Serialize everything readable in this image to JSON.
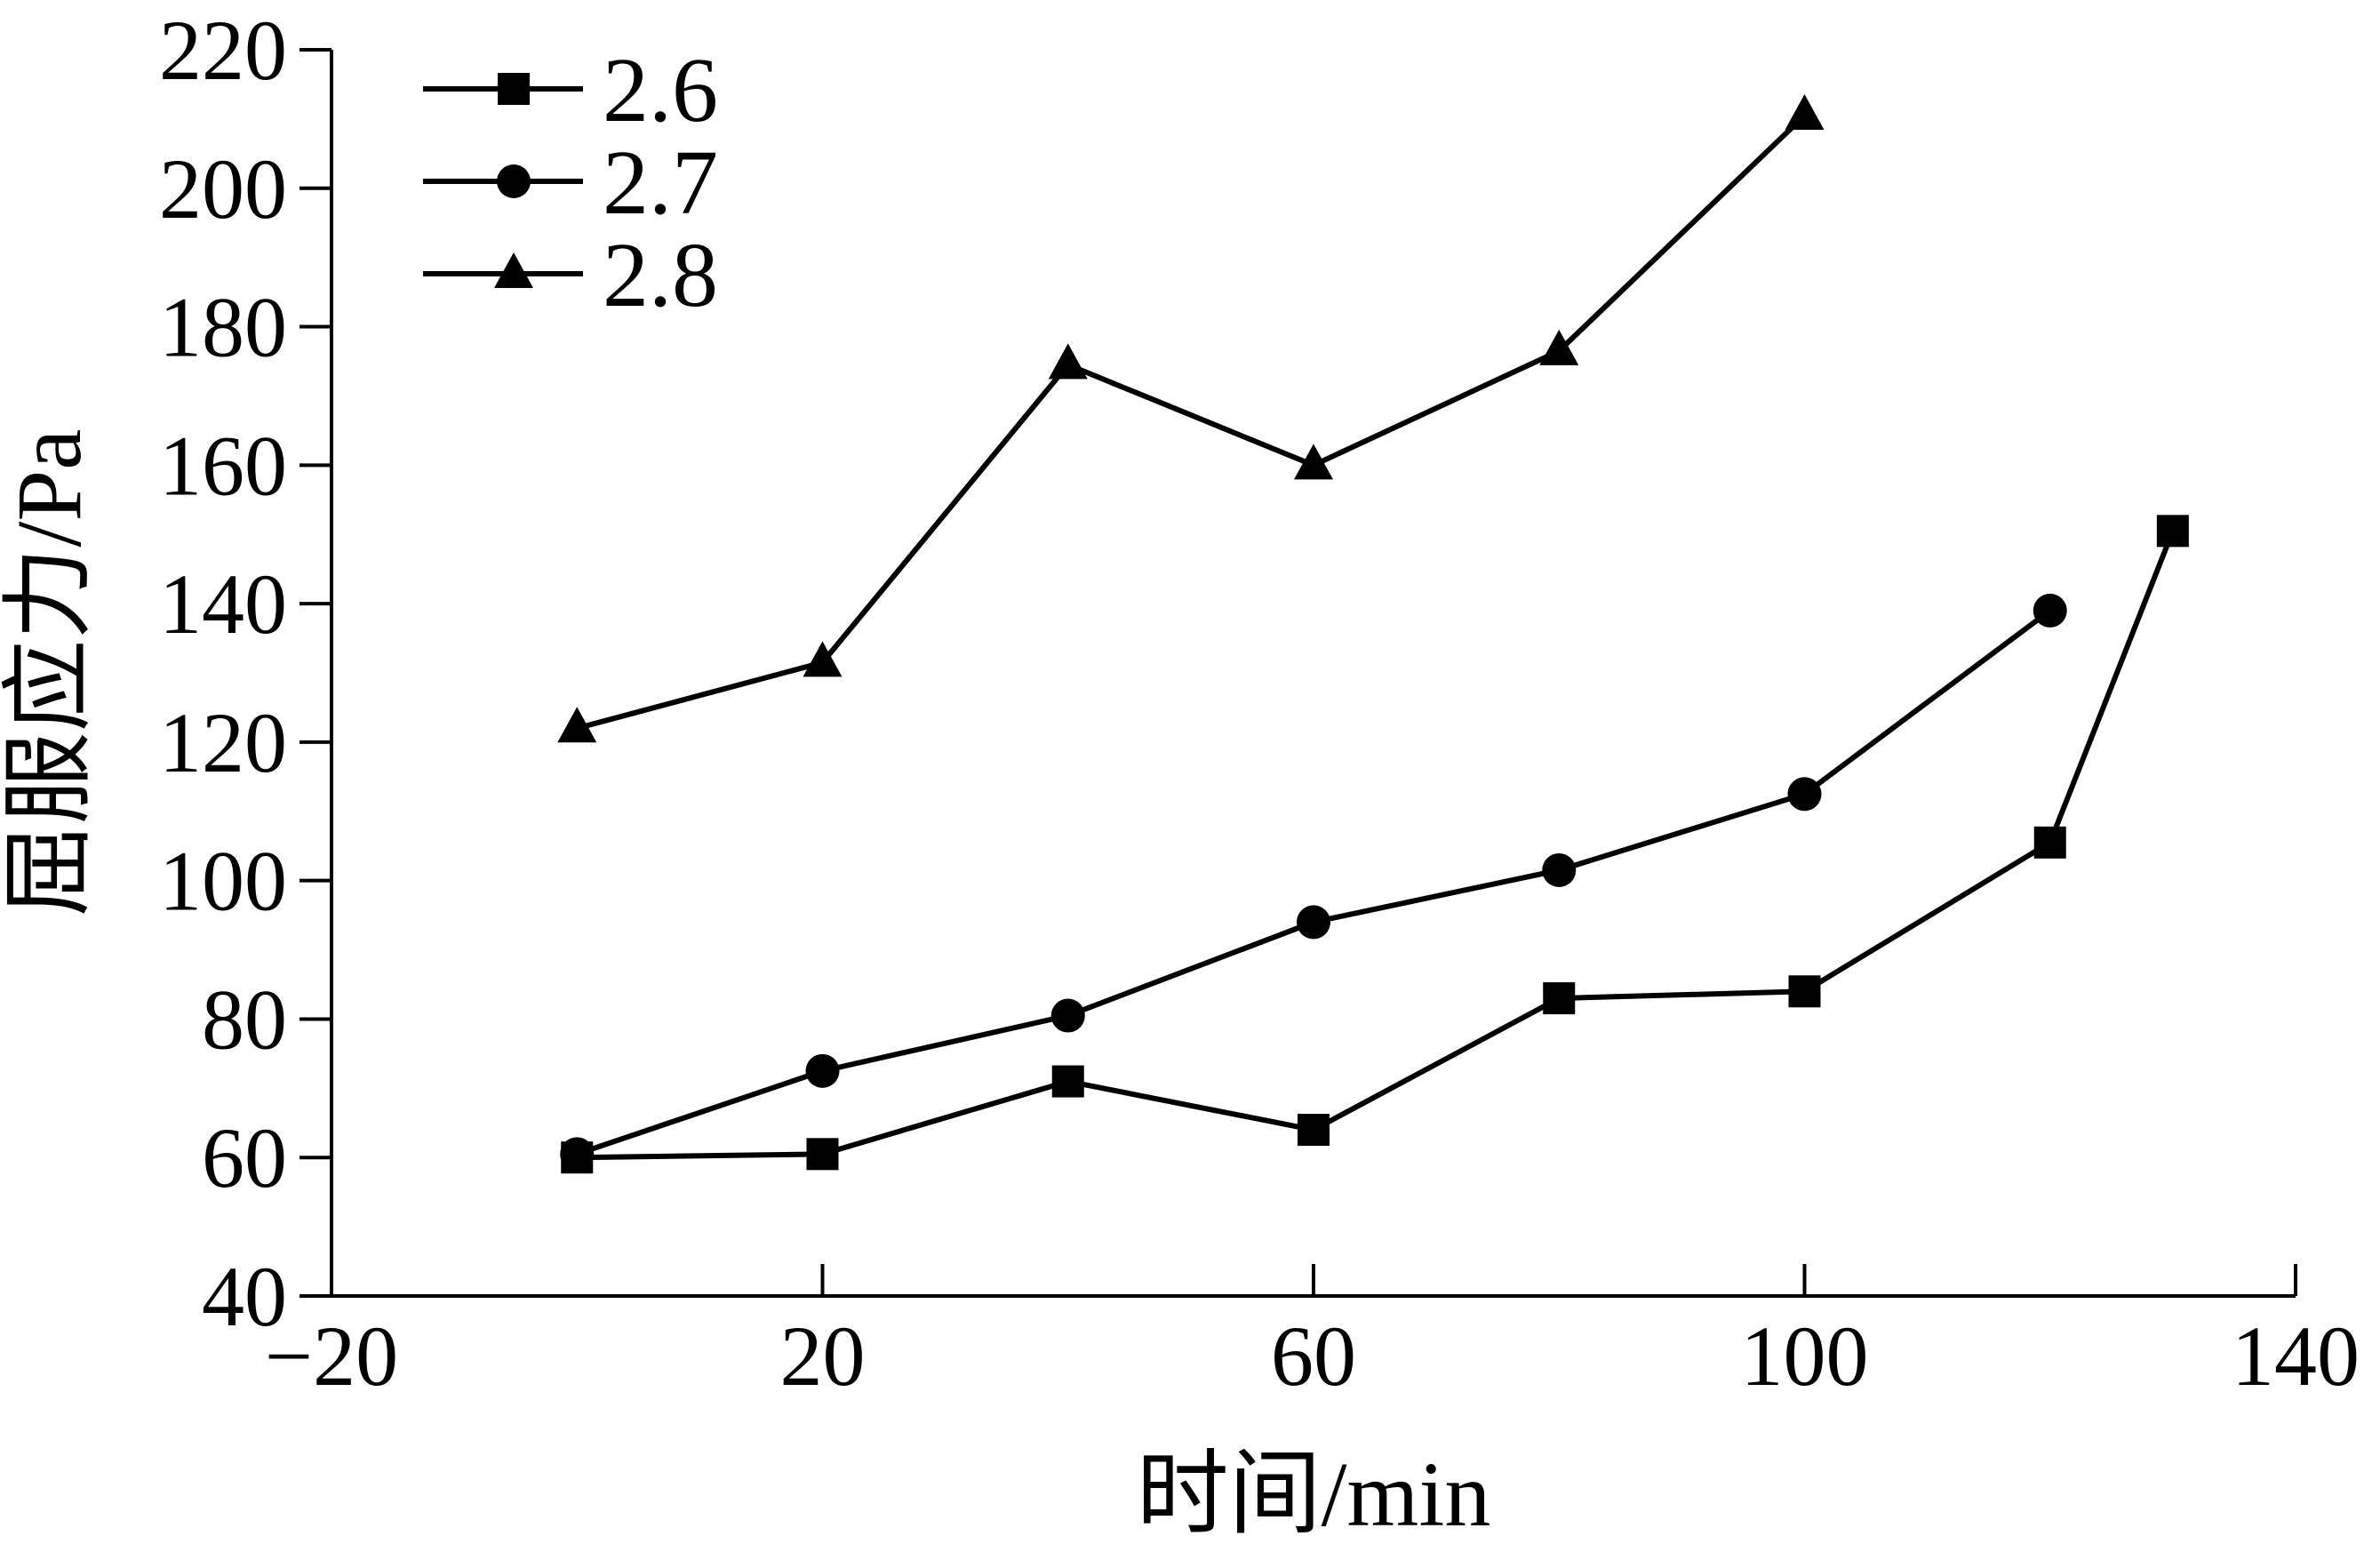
{
  "chart_data": {
    "type": "line",
    "title": "",
    "xlabel": "时间/min",
    "ylabel": "屈服应力/Pa",
    "xlim": [
      -20,
      140
    ],
    "ylim": [
      40,
      220
    ],
    "xticks": [
      -20,
      20,
      60,
      100,
      140
    ],
    "yticks": [
      40,
      60,
      80,
      100,
      120,
      140,
      160,
      180,
      200,
      220
    ],
    "xtick_labels": [
      "−20",
      "20",
      "60",
      "100",
      "140"
    ],
    "ytick_labels": [
      "40",
      "60",
      "80",
      "100",
      "120",
      "140",
      "160",
      "180",
      "200",
      "220"
    ],
    "grid": false,
    "legend_position": "top-left",
    "series": [
      {
        "name": "2.6",
        "marker": "square",
        "color": "#000000",
        "x": [
          0,
          20,
          40,
          60,
          80,
          100,
          120,
          130
        ],
        "y": [
          60,
          60.5,
          71,
          64,
          83,
          84,
          105.5,
          150.5
        ]
      },
      {
        "name": "2.7",
        "marker": "circle",
        "color": "#000000",
        "x": [
          0,
          20,
          40,
          60,
          80,
          100,
          120
        ],
        "y": [
          60.5,
          72.5,
          80.5,
          94,
          101.5,
          112.5,
          139
        ]
      },
      {
        "name": "2.8",
        "marker": "triangle",
        "color": "#000000",
        "x": [
          0,
          20,
          40,
          60,
          80,
          100
        ],
        "y": [
          122,
          131.5,
          174.5,
          160,
          176.5,
          210.5
        ]
      }
    ]
  }
}
